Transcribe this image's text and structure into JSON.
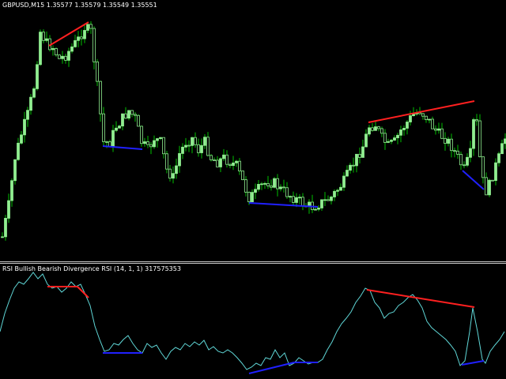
{
  "chart": {
    "symbol_label": "GBPUSD,M15",
    "ohlc_label": "1.35577 1.35579 1.35549 1.35551",
    "candle_color": "#90ee90",
    "wick_color": "#00c000"
  },
  "indicator": {
    "label": "RSI Bullish Bearish Divergence RSI (14, 1, 1) 317575353",
    "line_color": "#5fd6d6",
    "bearish_color": "#ff2020",
    "bullish_color": "#2020ff"
  }
}
